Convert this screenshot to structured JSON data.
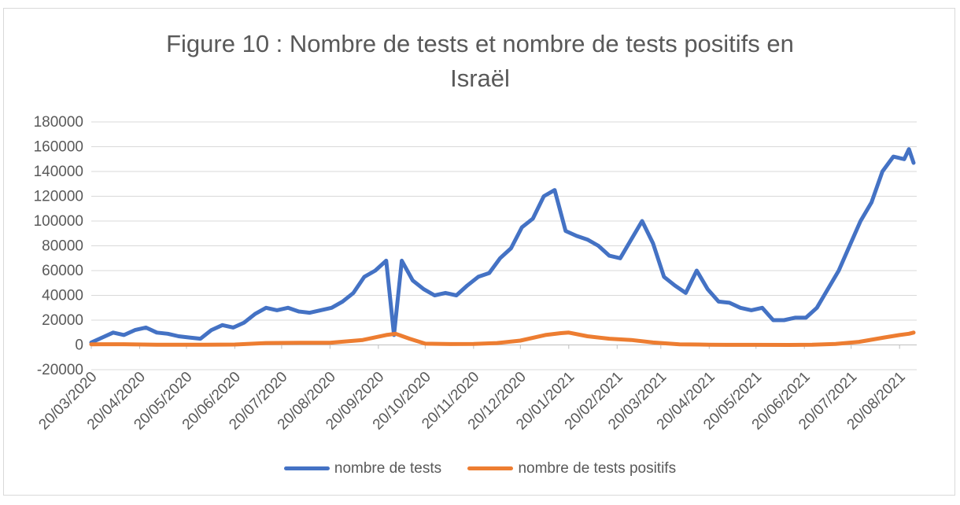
{
  "chart_data": {
    "type": "line",
    "title_lines": [
      "Figure 10 : Nombre de tests et nombre de tests positifs en",
      "Israël"
    ],
    "xlabel": "",
    "ylabel": "",
    "ylim": [
      -20000,
      180000
    ],
    "yticks": [
      180000,
      160000,
      140000,
      120000,
      100000,
      80000,
      60000,
      40000,
      20000,
      0,
      -20000
    ],
    "xlim": [
      "20/03/2020",
      "31/08/2021"
    ],
    "xticks": [
      "20/03/2020",
      "20/04/2020",
      "20/05/2020",
      "20/06/2020",
      "20/07/2020",
      "20/08/2020",
      "20/09/2020",
      "20/10/2020",
      "20/11/2020",
      "20/12/2020",
      "20/01/2021",
      "20/02/2021",
      "20/03/2021",
      "20/04/2021",
      "20/05/2021",
      "20/06/2021",
      "20/07/2021",
      "20/08/2021"
    ],
    "grid": true,
    "legend_position": "bottom",
    "series": [
      {
        "name": "nombre de tests",
        "color": "#4472c4",
        "points": [
          [
            "20/03/2020",
            2000
          ],
          [
            "27/03/2020",
            6000
          ],
          [
            "03/04/2020",
            10000
          ],
          [
            "10/04/2020",
            8000
          ],
          [
            "17/04/2020",
            12000
          ],
          [
            "24/04/2020",
            14000
          ],
          [
            "01/05/2020",
            10000
          ],
          [
            "08/05/2020",
            9000
          ],
          [
            "15/05/2020",
            7000
          ],
          [
            "22/05/2020",
            6000
          ],
          [
            "29/05/2020",
            5000
          ],
          [
            "05/06/2020",
            12000
          ],
          [
            "12/06/2020",
            16000
          ],
          [
            "19/06/2020",
            14000
          ],
          [
            "26/06/2020",
            18000
          ],
          [
            "03/07/2020",
            25000
          ],
          [
            "10/07/2020",
            30000
          ],
          [
            "17/07/2020",
            28000
          ],
          [
            "24/07/2020",
            30000
          ],
          [
            "31/07/2020",
            27000
          ],
          [
            "07/08/2020",
            26000
          ],
          [
            "14/08/2020",
            28000
          ],
          [
            "21/08/2020",
            30000
          ],
          [
            "28/08/2020",
            35000
          ],
          [
            "04/09/2020",
            42000
          ],
          [
            "11/09/2020",
            55000
          ],
          [
            "18/09/2020",
            60000
          ],
          [
            "25/09/2020",
            68000
          ],
          [
            "30/09/2020",
            8000
          ],
          [
            "05/10/2020",
            68000
          ],
          [
            "12/10/2020",
            52000
          ],
          [
            "19/10/2020",
            45000
          ],
          [
            "26/10/2020",
            40000
          ],
          [
            "02/11/2020",
            42000
          ],
          [
            "09/11/2020",
            40000
          ],
          [
            "16/11/2020",
            48000
          ],
          [
            "23/11/2020",
            55000
          ],
          [
            "30/11/2020",
            58000
          ],
          [
            "07/12/2020",
            70000
          ],
          [
            "14/12/2020",
            78000
          ],
          [
            "21/12/2020",
            95000
          ],
          [
            "28/12/2020",
            102000
          ],
          [
            "04/01/2021",
            120000
          ],
          [
            "11/01/2021",
            125000
          ],
          [
            "18/01/2021",
            92000
          ],
          [
            "25/01/2021",
            88000
          ],
          [
            "01/02/2021",
            85000
          ],
          [
            "08/02/2021",
            80000
          ],
          [
            "15/02/2021",
            72000
          ],
          [
            "22/02/2021",
            70000
          ],
          [
            "01/03/2021",
            85000
          ],
          [
            "08/03/2021",
            100000
          ],
          [
            "15/03/2021",
            82000
          ],
          [
            "22/03/2021",
            55000
          ],
          [
            "29/03/2021",
            48000
          ],
          [
            "05/04/2021",
            42000
          ],
          [
            "12/04/2021",
            60000
          ],
          [
            "19/04/2021",
            45000
          ],
          [
            "26/04/2021",
            35000
          ],
          [
            "03/05/2021",
            34000
          ],
          [
            "10/05/2021",
            30000
          ],
          [
            "17/05/2021",
            28000
          ],
          [
            "24/05/2021",
            30000
          ],
          [
            "31/05/2021",
            20000
          ],
          [
            "07/06/2021",
            20000
          ],
          [
            "14/06/2021",
            22000
          ],
          [
            "21/06/2021",
            22000
          ],
          [
            "28/06/2021",
            30000
          ],
          [
            "05/07/2021",
            45000
          ],
          [
            "12/07/2021",
            60000
          ],
          [
            "19/07/2021",
            80000
          ],
          [
            "26/07/2021",
            100000
          ],
          [
            "02/08/2021",
            115000
          ],
          [
            "09/08/2021",
            140000
          ],
          [
            "16/08/2021",
            152000
          ],
          [
            "23/08/2021",
            150000
          ],
          [
            "26/08/2021",
            158000
          ],
          [
            "29/08/2021",
            147000
          ]
        ]
      },
      {
        "name": "nombre de tests positifs",
        "color": "#ed7d31",
        "points": [
          [
            "20/03/2020",
            500
          ],
          [
            "10/04/2020",
            600
          ],
          [
            "01/05/2020",
            100
          ],
          [
            "01/06/2020",
            100
          ],
          [
            "20/06/2020",
            300
          ],
          [
            "10/07/2020",
            1500
          ],
          [
            "01/08/2020",
            1800
          ],
          [
            "20/08/2020",
            1800
          ],
          [
            "10/09/2020",
            4000
          ],
          [
            "25/09/2020",
            8000
          ],
          [
            "01/10/2020",
            9000
          ],
          [
            "10/10/2020",
            5000
          ],
          [
            "20/10/2020",
            1000
          ],
          [
            "05/11/2020",
            700
          ],
          [
            "20/11/2020",
            800
          ],
          [
            "05/12/2020",
            1500
          ],
          [
            "20/12/2020",
            3500
          ],
          [
            "05/01/2021",
            8000
          ],
          [
            "15/01/2021",
            9500
          ],
          [
            "20/01/2021",
            10000
          ],
          [
            "01/02/2021",
            7000
          ],
          [
            "15/02/2021",
            5000
          ],
          [
            "01/03/2021",
            4000
          ],
          [
            "15/03/2021",
            2000
          ],
          [
            "01/04/2021",
            500
          ],
          [
            "20/04/2021",
            200
          ],
          [
            "01/05/2021",
            80
          ],
          [
            "20/05/2021",
            50
          ],
          [
            "10/06/2021",
            30
          ],
          [
            "25/06/2021",
            100
          ],
          [
            "10/07/2021",
            800
          ],
          [
            "25/07/2021",
            2500
          ],
          [
            "10/08/2021",
            6000
          ],
          [
            "20/08/2021",
            8000
          ],
          [
            "26/08/2021",
            9000
          ],
          [
            "29/08/2021",
            10000
          ]
        ]
      }
    ]
  }
}
